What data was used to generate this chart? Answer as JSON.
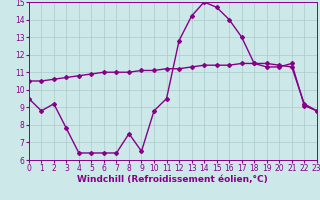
{
  "hours": [
    0,
    1,
    2,
    3,
    4,
    5,
    6,
    7,
    8,
    9,
    10,
    11,
    12,
    13,
    14,
    15,
    16,
    17,
    18,
    19,
    20,
    21,
    22,
    23
  ],
  "windchill": [
    9.5,
    8.8,
    9.2,
    7.8,
    6.4,
    6.4,
    6.4,
    6.4,
    7.5,
    6.5,
    8.8,
    9.5,
    12.8,
    14.2,
    15.0,
    14.7,
    14.0,
    13.0,
    11.5,
    11.3,
    11.3,
    11.5,
    9.1,
    8.8
  ],
  "temperature": [
    10.5,
    10.5,
    10.6,
    10.7,
    10.8,
    10.9,
    11.0,
    11.0,
    11.0,
    11.1,
    11.1,
    11.2,
    11.2,
    11.3,
    11.4,
    11.4,
    11.4,
    11.5,
    11.5,
    11.5,
    11.4,
    11.3,
    9.2,
    8.8
  ],
  "line_color": "#880088",
  "background_color": "#cce8e8",
  "grid_color": "#aacccc",
  "xlabel": "Windchill (Refroidissement éolien,°C)",
  "ylim": [
    6,
    15
  ],
  "xlim": [
    0,
    23
  ],
  "yticks": [
    6,
    7,
    8,
    9,
    10,
    11,
    12,
    13,
    14,
    15
  ],
  "xticks": [
    0,
    1,
    2,
    3,
    4,
    5,
    6,
    7,
    8,
    9,
    10,
    11,
    12,
    13,
    14,
    15,
    16,
    17,
    18,
    19,
    20,
    21,
    22,
    23
  ],
  "marker": "D",
  "marker_size": 2.0,
  "line_width": 1.0,
  "tick_font_size": 5.5,
  "xlabel_font_size": 6.5
}
